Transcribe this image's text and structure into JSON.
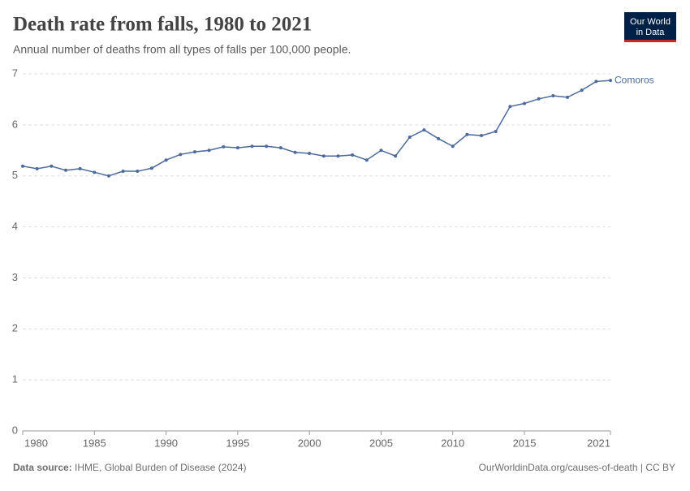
{
  "chart_data": {
    "type": "line",
    "title": "Death rate from falls, 1980 to 2021",
    "subtitle": "Annual number of deaths from all types of falls per 100,000 people.",
    "logo": [
      "Our World",
      "in Data"
    ],
    "source_label": "Data source:",
    "source": "IHME, Global Burden of Disease (2024)",
    "url": "OurWorldinData.org/causes-of-death | CC BY",
    "x": [
      1980,
      1981,
      1982,
      1983,
      1984,
      1985,
      1986,
      1987,
      1988,
      1989,
      1990,
      1991,
      1992,
      1993,
      1994,
      1995,
      1996,
      1997,
      1998,
      1999,
      2000,
      2001,
      2002,
      2003,
      2004,
      2005,
      2006,
      2007,
      2008,
      2009,
      2010,
      2011,
      2012,
      2013,
      2014,
      2015,
      2016,
      2017,
      2018,
      2019,
      2020,
      2021
    ],
    "series": [
      {
        "name": "Comoros",
        "color": "#4c6a9c",
        "values": [
          5.19,
          5.14,
          5.19,
          5.11,
          5.14,
          5.07,
          5.0,
          5.09,
          5.09,
          5.15,
          5.31,
          5.42,
          5.47,
          5.5,
          5.57,
          5.55,
          5.58,
          5.58,
          5.55,
          5.46,
          5.44,
          5.39,
          5.39,
          5.41,
          5.31,
          5.5,
          5.39,
          5.76,
          5.9,
          5.73,
          5.58,
          5.81,
          5.79,
          5.87,
          6.36,
          6.42,
          6.51,
          6.57,
          6.54,
          6.68,
          6.85,
          6.87
        ]
      }
    ],
    "xlim": [
      1980,
      2021
    ],
    "xticks": [
      1980,
      1985,
      1990,
      1995,
      2000,
      2005,
      2010,
      2015,
      2021
    ],
    "ylim": [
      0,
      7
    ],
    "yticks": [
      0,
      1,
      2,
      3,
      4,
      5,
      6,
      7
    ],
    "grid": true
  }
}
